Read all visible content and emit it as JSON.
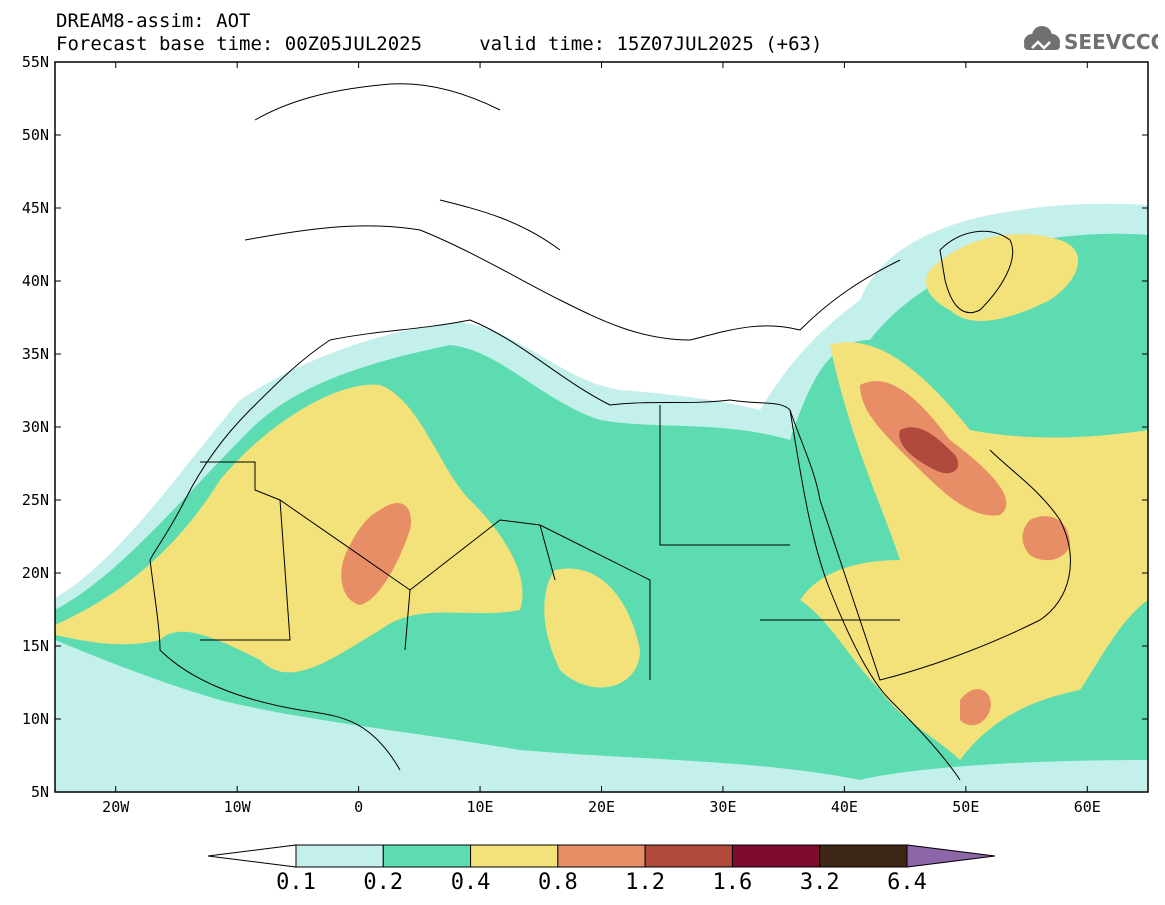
{
  "title": {
    "line1": "DREAM8-assim: AOT",
    "line2": "Forecast base time: 00Z05JUL2025     valid time: 15Z07JUL2025 (+63)"
  },
  "logo": {
    "text": "SEEVCCC"
  },
  "axes": {
    "lon_min": -25,
    "lon_max": 65,
    "lat_min": 5,
    "lat_max": 55,
    "x_ticks": [
      {
        "value": -20,
        "label": "20W"
      },
      {
        "value": -10,
        "label": "10W"
      },
      {
        "value": 0,
        "label": "0"
      },
      {
        "value": 10,
        "label": "10E"
      },
      {
        "value": 20,
        "label": "20E"
      },
      {
        "value": 30,
        "label": "30E"
      },
      {
        "value": 40,
        "label": "40E"
      },
      {
        "value": 50,
        "label": "50E"
      },
      {
        "value": 60,
        "label": "60E"
      }
    ],
    "y_ticks": [
      {
        "value": 55,
        "label": "55N"
      },
      {
        "value": 50,
        "label": "50N"
      },
      {
        "value": 45,
        "label": "45N"
      },
      {
        "value": 40,
        "label": "40N"
      },
      {
        "value": 35,
        "label": "35N"
      },
      {
        "value": 30,
        "label": "30N"
      },
      {
        "value": 25,
        "label": "25N"
      },
      {
        "value": 20,
        "label": "20N"
      },
      {
        "value": 15,
        "label": "15N"
      },
      {
        "value": 10,
        "label": "10N"
      },
      {
        "value": 5,
        "label": "5N"
      }
    ]
  },
  "colorbar": {
    "colors": [
      "#ffffff",
      "#c4f0ec",
      "#5cdcb0",
      "#f3e27a",
      "#e78e67",
      "#b04a3c",
      "#7e0c2c",
      "#3d2613",
      "#8e66a8"
    ],
    "labels": [
      "0.1",
      "0.2",
      "0.4",
      "0.8",
      "1.2",
      "1.6",
      "3.2",
      "6.4"
    ]
  },
  "fields": [
    {
      "name": "aot-0.1-band",
      "level": 0.1,
      "color": "#c4f0ec"
    },
    {
      "name": "aot-0.2-band",
      "level": 0.2,
      "color": "#5cdcb0"
    },
    {
      "name": "aot-0.4-band",
      "level": 0.4,
      "color": "#f3e27a"
    },
    {
      "name": "aot-0.8-band",
      "level": 0.8,
      "color": "#e78e67"
    },
    {
      "name": "aot-1.2-band",
      "level": 1.2,
      "color": "#b04a3c"
    }
  ]
}
